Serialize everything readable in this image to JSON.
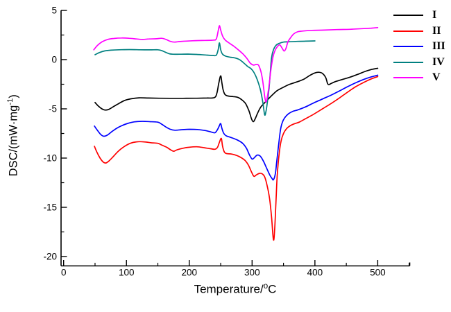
{
  "figure": {
    "background": "#FFFFFF",
    "text_color": "#000000"
  },
  "chart_data": {
    "type": "line",
    "title": "",
    "xlabel": "Temperature/°C",
    "ylabel": "DSC/(mW·mg⁻¹)",
    "xlabel_parts": {
      "prefix": "Temperature/",
      "sup": "o",
      "suffix": "C"
    },
    "ylabel_parts": {
      "prefix": "DSC/(mW·mg",
      "sup": "-1",
      "suffix": ")"
    },
    "xlim": [
      0,
      550
    ],
    "ylim": [
      -21,
      5
    ],
    "x_major_ticks": [
      0,
      100,
      200,
      300,
      400,
      500
    ],
    "x_minor_ticks": [
      50,
      150,
      250,
      350,
      450,
      550
    ],
    "y_major_ticks": [
      5,
      0,
      -5,
      -10,
      -15,
      -20
    ],
    "y_minor_ticks": [
      2.5,
      -2.5,
      -7.5,
      -12.5,
      -17.5
    ],
    "grid": false,
    "legend_position": "top-right",
    "axis_color": "#000000",
    "series": [
      {
        "name": "I",
        "color": "#000000",
        "points": [
          [
            50,
            -4.35
          ],
          [
            55,
            -4.7
          ],
          [
            61,
            -5.0
          ],
          [
            66,
            -5.12
          ],
          [
            72,
            -5.05
          ],
          [
            80,
            -4.75
          ],
          [
            88,
            -4.45
          ],
          [
            97,
            -4.15
          ],
          [
            107,
            -3.98
          ],
          [
            120,
            -3.88
          ],
          [
            135,
            -3.9
          ],
          [
            152,
            -3.92
          ],
          [
            170,
            -3.93
          ],
          [
            190,
            -3.93
          ],
          [
            210,
            -3.92
          ],
          [
            228,
            -3.9
          ],
          [
            240,
            -3.86
          ],
          [
            244,
            -3.4
          ],
          [
            247,
            -2.4
          ],
          [
            250,
            -1.65
          ],
          [
            252,
            -2.4
          ],
          [
            254,
            -3.1
          ],
          [
            257,
            -3.55
          ],
          [
            262,
            -3.7
          ],
          [
            270,
            -3.75
          ],
          [
            278,
            -3.85
          ],
          [
            285,
            -4.15
          ],
          [
            290,
            -4.5
          ],
          [
            295,
            -5.2
          ],
          [
            299,
            -6.0
          ],
          [
            302,
            -6.3
          ],
          [
            305,
            -6.0
          ],
          [
            309,
            -5.4
          ],
          [
            314,
            -4.8
          ],
          [
            319,
            -4.45
          ],
          [
            325,
            -4.05
          ],
          [
            332,
            -3.6
          ],
          [
            340,
            -3.15
          ],
          [
            350,
            -2.8
          ],
          [
            360,
            -2.5
          ],
          [
            372,
            -2.25
          ],
          [
            382,
            -2.0
          ],
          [
            392,
            -1.6
          ],
          [
            400,
            -1.35
          ],
          [
            406,
            -1.28
          ],
          [
            412,
            -1.4
          ],
          [
            417,
            -1.8
          ],
          [
            420,
            -2.4
          ],
          [
            422,
            -2.55
          ],
          [
            425,
            -2.45
          ],
          [
            432,
            -2.25
          ],
          [
            442,
            -2.05
          ],
          [
            455,
            -1.8
          ],
          [
            468,
            -1.5
          ],
          [
            480,
            -1.2
          ],
          [
            490,
            -1.0
          ],
          [
            500,
            -0.88
          ]
        ]
      },
      {
        "name": "II",
        "color": "#FF0000",
        "points": [
          [
            49,
            -8.8
          ],
          [
            53,
            -9.4
          ],
          [
            58,
            -10.0
          ],
          [
            63,
            -10.4
          ],
          [
            67,
            -10.5
          ],
          [
            72,
            -10.3
          ],
          [
            79,
            -9.85
          ],
          [
            87,
            -9.3
          ],
          [
            96,
            -8.85
          ],
          [
            106,
            -8.5
          ],
          [
            116,
            -8.35
          ],
          [
            128,
            -8.35
          ],
          [
            140,
            -8.45
          ],
          [
            150,
            -8.5
          ],
          [
            157,
            -8.7
          ],
          [
            164,
            -8.9
          ],
          [
            170,
            -9.15
          ],
          [
            175,
            -9.3
          ],
          [
            181,
            -9.15
          ],
          [
            190,
            -9.0
          ],
          [
            200,
            -8.9
          ],
          [
            212,
            -8.85
          ],
          [
            224,
            -8.95
          ],
          [
            234,
            -9.05
          ],
          [
            241,
            -9.1
          ],
          [
            245,
            -8.9
          ],
          [
            248,
            -8.4
          ],
          [
            251,
            -8.0
          ],
          [
            253,
            -8.8
          ],
          [
            256,
            -9.4
          ],
          [
            260,
            -9.55
          ],
          [
            268,
            -9.6
          ],
          [
            278,
            -9.8
          ],
          [
            288,
            -10.2
          ],
          [
            294,
            -10.7
          ],
          [
            299,
            -11.4
          ],
          [
            303,
            -11.85
          ],
          [
            307,
            -11.7
          ],
          [
            312,
            -11.55
          ],
          [
            316,
            -11.6
          ],
          [
            320,
            -11.9
          ],
          [
            324,
            -12.8
          ],
          [
            328,
            -14.2
          ],
          [
            331,
            -16.0
          ],
          [
            334,
            -18.3
          ],
          [
            336,
            -17.2
          ],
          [
            338,
            -14.5
          ],
          [
            340,
            -11.8
          ],
          [
            343,
            -9.6
          ],
          [
            346,
            -8.3
          ],
          [
            350,
            -7.5
          ],
          [
            355,
            -7.0
          ],
          [
            361,
            -6.7
          ],
          [
            368,
            -6.5
          ],
          [
            375,
            -6.35
          ],
          [
            385,
            -6.0
          ],
          [
            398,
            -5.55
          ],
          [
            412,
            -5.0
          ],
          [
            426,
            -4.45
          ],
          [
            440,
            -3.85
          ],
          [
            452,
            -3.3
          ],
          [
            465,
            -2.75
          ],
          [
            478,
            -2.3
          ],
          [
            490,
            -1.95
          ],
          [
            500,
            -1.72
          ]
        ]
      },
      {
        "name": "III",
        "color": "#0000FF",
        "points": [
          [
            49,
            -6.75
          ],
          [
            54,
            -7.2
          ],
          [
            59,
            -7.6
          ],
          [
            64,
            -7.78
          ],
          [
            70,
            -7.65
          ],
          [
            77,
            -7.3
          ],
          [
            85,
            -6.95
          ],
          [
            93,
            -6.7
          ],
          [
            102,
            -6.48
          ],
          [
            113,
            -6.32
          ],
          [
            126,
            -6.27
          ],
          [
            138,
            -6.3
          ],
          [
            150,
            -6.35
          ],
          [
            156,
            -6.55
          ],
          [
            163,
            -6.85
          ],
          [
            170,
            -7.08
          ],
          [
            177,
            -7.17
          ],
          [
            188,
            -7.12
          ],
          [
            200,
            -7.08
          ],
          [
            213,
            -7.1
          ],
          [
            225,
            -7.2
          ],
          [
            235,
            -7.35
          ],
          [
            241,
            -7.42
          ],
          [
            245,
            -7.1
          ],
          [
            248,
            -6.7
          ],
          [
            250,
            -6.5
          ],
          [
            252,
            -7.0
          ],
          [
            255,
            -7.5
          ],
          [
            259,
            -7.75
          ],
          [
            266,
            -7.9
          ],
          [
            276,
            -8.15
          ],
          [
            285,
            -8.5
          ],
          [
            291,
            -9.0
          ],
          [
            296,
            -9.7
          ],
          [
            300,
            -10.1
          ],
          [
            303,
            -10.0
          ],
          [
            308,
            -9.7
          ],
          [
            313,
            -9.8
          ],
          [
            318,
            -10.3
          ],
          [
            323,
            -11.0
          ],
          [
            328,
            -11.7
          ],
          [
            332,
            -12.1
          ],
          [
            334,
            -12.2
          ],
          [
            337,
            -11.6
          ],
          [
            339,
            -10.5
          ],
          [
            342,
            -8.8
          ],
          [
            345,
            -7.2
          ],
          [
            348,
            -6.4
          ],
          [
            352,
            -5.9
          ],
          [
            358,
            -5.5
          ],
          [
            365,
            -5.25
          ],
          [
            373,
            -5.1
          ],
          [
            385,
            -4.8
          ],
          [
            398,
            -4.4
          ],
          [
            412,
            -4.0
          ],
          [
            426,
            -3.6
          ],
          [
            440,
            -3.15
          ],
          [
            452,
            -2.75
          ],
          [
            465,
            -2.35
          ],
          [
            478,
            -2.0
          ],
          [
            490,
            -1.75
          ],
          [
            500,
            -1.58
          ]
        ]
      },
      {
        "name": "IV",
        "color": "#008080",
        "points": [
          [
            50,
            0.5
          ],
          [
            57,
            0.72
          ],
          [
            65,
            0.88
          ],
          [
            75,
            0.96
          ],
          [
            88,
            1.0
          ],
          [
            105,
            1.02
          ],
          [
            122,
            1.0
          ],
          [
            138,
            0.99
          ],
          [
            150,
            1.0
          ],
          [
            156,
            0.92
          ],
          [
            162,
            0.75
          ],
          [
            168,
            0.6
          ],
          [
            174,
            0.55
          ],
          [
            185,
            0.55
          ],
          [
            198,
            0.56
          ],
          [
            212,
            0.53
          ],
          [
            226,
            0.47
          ],
          [
            238,
            0.42
          ],
          [
            243,
            0.45
          ],
          [
            246,
            1.0
          ],
          [
            248,
            1.7
          ],
          [
            250,
            1.0
          ],
          [
            253,
            0.55
          ],
          [
            258,
            0.35
          ],
          [
            265,
            0.25
          ],
          [
            272,
            0.18
          ],
          [
            280,
            0.0
          ],
          [
            287,
            -0.35
          ],
          [
            293,
            -0.7
          ],
          [
            298,
            -0.9
          ],
          [
            303,
            -1.3
          ],
          [
            308,
            -2.0
          ],
          [
            313,
            -3.0
          ],
          [
            317,
            -4.3
          ],
          [
            320,
            -5.6
          ],
          [
            322,
            -5.3
          ],
          [
            324,
            -4.5
          ],
          [
            327,
            -2.9
          ],
          [
            329,
            -1.3
          ],
          [
            331,
            0.2
          ],
          [
            334,
            1.0
          ],
          [
            338,
            1.45
          ],
          [
            343,
            1.65
          ],
          [
            350,
            1.78
          ],
          [
            360,
            1.82
          ],
          [
            372,
            1.85
          ],
          [
            385,
            1.87
          ],
          [
            400,
            1.9
          ]
        ]
      },
      {
        "name": "V",
        "color": "#FF00FF",
        "points": [
          [
            48,
            1.0
          ],
          [
            54,
            1.45
          ],
          [
            61,
            1.8
          ],
          [
            70,
            2.05
          ],
          [
            80,
            2.15
          ],
          [
            92,
            2.2
          ],
          [
            104,
            2.17
          ],
          [
            116,
            2.1
          ],
          [
            126,
            2.05
          ],
          [
            136,
            2.1
          ],
          [
            148,
            2.12
          ],
          [
            156,
            2.17
          ],
          [
            163,
            2.05
          ],
          [
            170,
            1.85
          ],
          [
            176,
            1.78
          ],
          [
            184,
            1.83
          ],
          [
            195,
            1.88
          ],
          [
            210,
            1.93
          ],
          [
            225,
            1.95
          ],
          [
            238,
            1.98
          ],
          [
            243,
            2.1
          ],
          [
            246,
            2.9
          ],
          [
            248,
            3.45
          ],
          [
            250,
            3.0
          ],
          [
            253,
            2.4
          ],
          [
            257,
            2.0
          ],
          [
            262,
            1.75
          ],
          [
            270,
            1.4
          ],
          [
            278,
            1.0
          ],
          [
            286,
            0.55
          ],
          [
            292,
            0.1
          ],
          [
            297,
            -0.35
          ],
          [
            302,
            -0.55
          ],
          [
            306,
            -0.5
          ],
          [
            310,
            -0.55
          ],
          [
            314,
            -1.2
          ],
          [
            317,
            -2.2
          ],
          [
            320,
            -3.7
          ],
          [
            322,
            -4.3
          ],
          [
            324,
            -3.9
          ],
          [
            327,
            -2.6
          ],
          [
            330,
            -1.0
          ],
          [
            333,
            0.2
          ],
          [
            336,
            0.85
          ],
          [
            340,
            1.3
          ],
          [
            344,
            1.5
          ],
          [
            348,
            1.15
          ],
          [
            351,
            0.87
          ],
          [
            354,
            1.15
          ],
          [
            357,
            1.8
          ],
          [
            361,
            2.2
          ],
          [
            366,
            2.6
          ],
          [
            372,
            2.82
          ],
          [
            380,
            2.9
          ],
          [
            395,
            2.97
          ],
          [
            415,
            3.0
          ],
          [
            435,
            3.05
          ],
          [
            455,
            3.08
          ],
          [
            475,
            3.15
          ],
          [
            490,
            3.2
          ],
          [
            500,
            3.25
          ]
        ]
      }
    ]
  },
  "legend": {
    "items": [
      {
        "label": "I"
      },
      {
        "label": "II"
      },
      {
        "label": "III"
      },
      {
        "label": "IV"
      },
      {
        "label": "V"
      }
    ]
  }
}
